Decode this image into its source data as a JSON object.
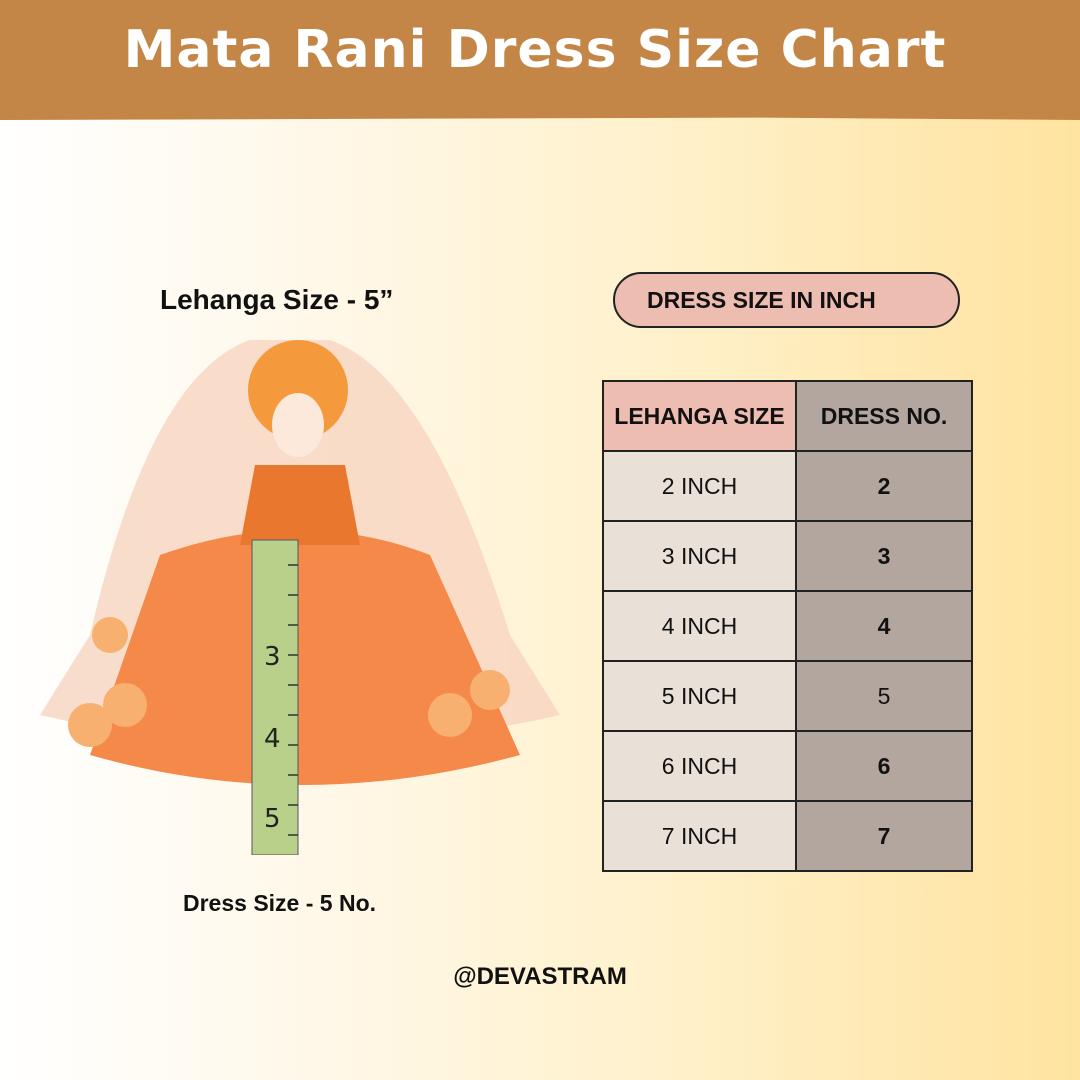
{
  "header": {
    "title": "Mata Rani Dress Size Chart"
  },
  "left": {
    "lehanga_label": "Lehanga Size - 5”",
    "dress_label": "Dress Size - 5 No."
  },
  "pill": {
    "label": "DRESS SIZE IN INCH"
  },
  "table": {
    "headers": [
      "LEHANGA SIZE",
      "DRESS NO."
    ],
    "rows": [
      [
        "2 INCH",
        "2"
      ],
      [
        "3 INCH",
        "3"
      ],
      [
        "4 INCH",
        "4"
      ],
      [
        "5 INCH",
        "5"
      ],
      [
        "6 INCH",
        "6"
      ],
      [
        "7 INCH",
        "7"
      ]
    ]
  },
  "footer": {
    "handle": "@DEVASTRAM"
  },
  "ruler": {
    "marks": [
      "3",
      "4",
      "5"
    ]
  },
  "colors": {
    "header": "#c48646",
    "pill": "#edbdb2",
    "col_left": "#e9e1d7",
    "col_right": "#b3a69e"
  }
}
